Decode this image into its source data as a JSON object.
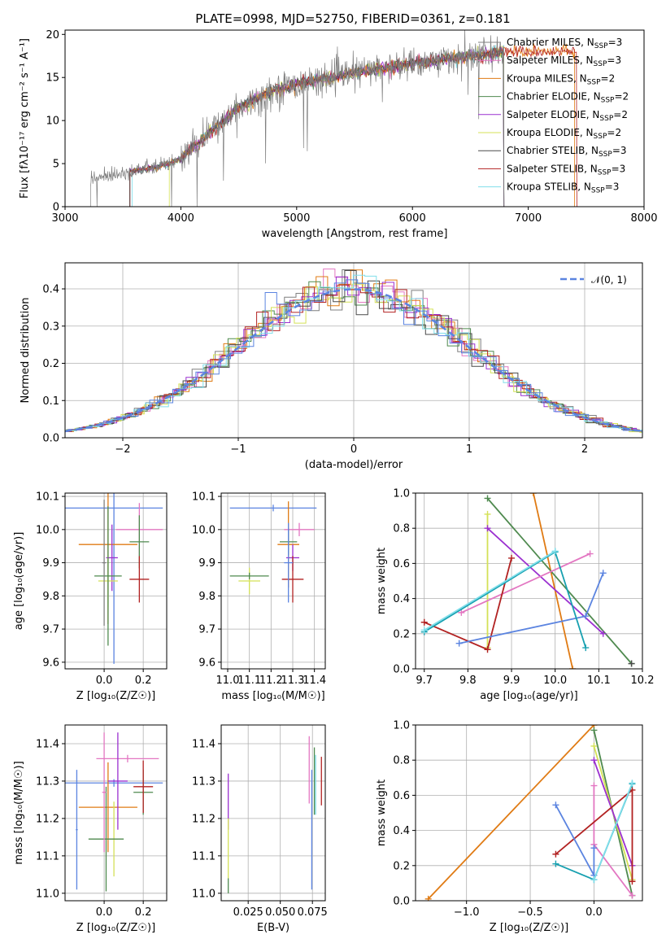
{
  "title": "PLATE=0998, MJD=52750, FIBERID=0361, z=0.181",
  "series_colors": [
    "#7f7f7f",
    "#e377c2",
    "#ff7f0e",
    "#2f7f3f",
    "#9b30d0",
    "#dbdb8d",
    "#3c3c3c",
    "#b22222",
    "#17becf"
  ],
  "models": [
    {
      "name": "Chabrier MILES, N",
      "sub": "SSP",
      "eq": "=3",
      "color": "#7f7f7f"
    },
    {
      "name": "Salpeter MILES, N",
      "sub": "SSP",
      "eq": "=3",
      "color": "#e377c2"
    },
    {
      "name": "Kroupa MILES, N",
      "sub": "SSP",
      "eq": "=2",
      "color": "#e07b14"
    },
    {
      "name": "Chabrier ELODIE, N",
      "sub": "SSP",
      "eq": "=2",
      "color": "#4f8a4f"
    },
    {
      "name": "Salpeter ELODIE, N",
      "sub": "SSP",
      "eq": "=2",
      "color": "#9b30d0"
    },
    {
      "name": "Kroupa ELODIE, N",
      "sub": "SSP",
      "eq": "=2",
      "color": "#d4e157"
    },
    {
      "name": "Chabrier STELIB, N",
      "sub": "SSP",
      "eq": "=3",
      "color": "#4a4a4a"
    },
    {
      "name": "Salpeter STELIB, N",
      "sub": "SSP",
      "eq": "=3",
      "color": "#b22222"
    },
    {
      "name": "Kroupa STELIB, N",
      "sub": "SSP",
      "eq": "=3",
      "color": "#80deea"
    }
  ],
  "chart_data": [
    {
      "id": "spectrum",
      "type": "line",
      "xlabel": "wavelength [Angstrom, rest frame]",
      "ylabel": "Flux [fλ10⁻¹⁷ erg cm⁻² s⁻¹ A⁻¹]",
      "xlim": [
        3000,
        8000
      ],
      "ylim": [
        0,
        20.5
      ],
      "xticks": [
        3000,
        4000,
        5000,
        6000,
        7000,
        8000
      ],
      "yticks": [
        0,
        5,
        10,
        15,
        20
      ],
      "continuum": {
        "x": [
          3220,
          3500,
          3800,
          4000,
          4200,
          4500,
          4800,
          5000,
          5300,
          5600,
          6000,
          6300,
          6600,
          6800
        ],
        "y": [
          3.2,
          4.0,
          4.6,
          5.5,
          8.0,
          11.5,
          13.5,
          14.2,
          15.0,
          15.8,
          16.6,
          17.2,
          17.6,
          18.0
        ]
      }
    },
    {
      "id": "residuals",
      "type": "line",
      "xlabel": "(data-model)/error",
      "ylabel": "Normed distribution",
      "xlim": [
        -2.5,
        2.5
      ],
      "ylim": [
        0,
        0.47
      ],
      "xticks": [
        -2,
        -1,
        0,
        1,
        2
      ],
      "xtick_labels": [
        "−2",
        "−1",
        "0",
        "1",
        "2"
      ],
      "yticks": [
        0.0,
        0.1,
        0.2,
        0.3,
        0.4
      ],
      "ytick_labels": [
        "0.0",
        "0.1",
        "0.2",
        "0.3",
        "0.4"
      ],
      "legend": "𝒩(0, 1)",
      "legend_position": "top-right",
      "grid": true
    },
    {
      "id": "age_vs_Z",
      "type": "scatter",
      "xlabel": "Z [log₁₀(Z/Z☉)]",
      "ylabel": "age  [log₁₀(age/yr)]",
      "xlim": [
        -0.2,
        0.32
      ],
      "ylim": [
        9.58,
        10.11
      ],
      "xticks": [
        0.0,
        0.2
      ],
      "xtick_labels": [
        "0.0",
        "0.2"
      ],
      "yticks": [
        9.6,
        9.7,
        9.8,
        9.9,
        10.0,
        10.1
      ],
      "ytick_labels": [
        "9.6",
        "9.7",
        "9.8",
        "9.9",
        "10.0",
        "10.1"
      ],
      "grid": true,
      "points": [
        {
          "x": 0.05,
          "y": 10.065,
          "xerr": 0.25,
          "yerr": 0.47,
          "color": "#5b84e0"
        },
        {
          "x": 0.18,
          "y": 10.0,
          "xerr": 0.12,
          "yerr": 0.08,
          "color": "#e377c2"
        },
        {
          "x": 0.02,
          "y": 9.955,
          "xerr": 0.15,
          "yerr": 0.24,
          "color": "#e07b14"
        },
        {
          "x": 0.18,
          "y": 9.963,
          "xerr": 0.05,
          "yerr": 0.08,
          "color": "#4f8a4f"
        },
        {
          "x": 0.04,
          "y": 9.915,
          "xerr": 0.03,
          "yerr": 0.1,
          "color": "#9b30d0"
        },
        {
          "x": 0.02,
          "y": 9.845,
          "xerr": 0.05,
          "yerr": 0.08,
          "color": "#d4e157"
        },
        {
          "x": 0.02,
          "y": 9.86,
          "xerr": 0.07,
          "yerr": 0.21,
          "color": "#4f8a4f"
        },
        {
          "x": 0.18,
          "y": 9.85,
          "xerr": 0.05,
          "yerr": 0.07,
          "color": "#b22222"
        },
        {
          "x": 0.0,
          "y": 9.9,
          "xerr": 0.01,
          "yerr": 0.19,
          "color": "#7f7f7f"
        }
      ]
    },
    {
      "id": "age_vs_mass",
      "type": "scatter",
      "xlabel": "mass [log₁₀(M/M☉)]",
      "xlim": [
        10.97,
        11.45
      ],
      "ylim": [
        9.58,
        10.11
      ],
      "xticks": [
        11.0,
        11.1,
        11.2,
        11.3,
        11.4
      ],
      "xtick_labels": [
        "11.0",
        "11.1",
        "11.2",
        "11.3",
        "11.4"
      ],
      "yticks": [
        9.6,
        9.7,
        9.8,
        9.9,
        10.0,
        10.1
      ],
      "ytick_labels": [
        "9.6",
        "9.7",
        "9.8",
        "9.9",
        "10.0",
        "10.1"
      ],
      "grid": true,
      "points": [
        {
          "x": 11.21,
          "y": 10.065,
          "xerr": 0.2,
          "yerr": 0.01,
          "color": "#5b84e0"
        },
        {
          "x": 11.33,
          "y": 10.0,
          "xerr": 0.07,
          "yerr": 0.02,
          "color": "#e377c2"
        },
        {
          "x": 11.28,
          "y": 9.955,
          "xerr": 0.05,
          "yerr": 0.13,
          "color": "#e07b14"
        },
        {
          "x": 11.28,
          "y": 9.963,
          "xerr": 0.04,
          "yerr": 0.04,
          "color": "#4f8a4f"
        },
        {
          "x": 11.3,
          "y": 9.915,
          "xerr": 0.03,
          "yerr": 0.04,
          "color": "#9b30d0"
        },
        {
          "x": 11.1,
          "y": 9.845,
          "xerr": 0.05,
          "yerr": 0.04,
          "color": "#d4e157"
        },
        {
          "x": 11.1,
          "y": 9.86,
          "xerr": 0.09,
          "yerr": 0.01,
          "color": "#4f8a4f"
        },
        {
          "x": 11.3,
          "y": 9.85,
          "xerr": 0.05,
          "yerr": 0.07,
          "color": "#b22222"
        },
        {
          "x": 11.28,
          "y": 9.9,
          "xerr": 0.02,
          "yerr": 0.12,
          "color": "#5b84e0"
        }
      ]
    },
    {
      "id": "weight_vs_age",
      "type": "line",
      "xlabel": "age  [log₁₀(age/yr)]",
      "ylabel": "mass weight",
      "xlim": [
        9.68,
        10.2
      ],
      "ylim": [
        0,
        1.0
      ],
      "xticks": [
        9.7,
        9.8,
        9.9,
        10.0,
        10.1,
        10.2
      ],
      "xtick_labels": [
        "9.7",
        "9.8",
        "9.9",
        "10.0",
        "10.1",
        "10.2"
      ],
      "yticks": [
        0.0,
        0.2,
        0.4,
        0.6,
        0.8,
        1.0
      ],
      "ytick_labels": [
        "0.0",
        "0.2",
        "0.4",
        "0.6",
        "0.8",
        "1.0"
      ],
      "grid": true,
      "series": [
        {
          "color": "#e07b14",
          "x": [
            9.95,
            10.04
          ],
          "y": [
            1.0,
            0.0
          ]
        },
        {
          "color": "#4f8a4f",
          "x": [
            9.845,
            10.175
          ],
          "y": [
            0.97,
            0.03
          ]
        },
        {
          "color": "#d4e157",
          "x": [
            9.845,
            9.845
          ],
          "y": [
            0.88,
            0.12
          ]
        },
        {
          "color": "#9b30d0",
          "x": [
            9.845,
            10.11
          ],
          "y": [
            0.8,
            0.2
          ]
        },
        {
          "color": "#e377c2",
          "x": [
            9.785,
            10.08
          ],
          "y": [
            0.32,
            0.655
          ]
        },
        {
          "color": "#b22222",
          "x": [
            9.7,
            9.845,
            9.9
          ],
          "y": [
            0.265,
            0.11,
            0.63
          ]
        },
        {
          "color": "#5b84e0",
          "x": [
            9.78,
            10.07,
            10.11
          ],
          "y": [
            0.145,
            0.3,
            0.545
          ]
        },
        {
          "color": "#17a0b0",
          "x": [
            9.7,
            10.0,
            10.07
          ],
          "y": [
            0.21,
            0.665,
            0.12
          ]
        },
        {
          "color": "#80deea",
          "x": [
            9.7,
            10.0
          ],
          "y": [
            0.22,
            0.67
          ]
        },
        {
          "color": "#4a4a4a",
          "x": [
            10.175
          ],
          "y": [
            0.03
          ]
        }
      ]
    },
    {
      "id": "mass_vs_Z",
      "type": "scatter",
      "xlabel": "Z [log₁₀(Z/Z☉)]",
      "ylabel": "mass [log₁₀(M/M☉)]",
      "xlim": [
        -0.2,
        0.32
      ],
      "ylim": [
        10.98,
        11.45
      ],
      "xticks": [
        0.0,
        0.2
      ],
      "xtick_labels": [
        "0.0",
        "0.2"
      ],
      "yticks": [
        11.0,
        11.1,
        11.2,
        11.3,
        11.4
      ],
      "ytick_labels": [
        "11.0",
        "11.1",
        "11.2",
        "11.3",
        "11.4"
      ],
      "grid": true,
      "points": [
        {
          "x": 0.05,
          "y": 11.295,
          "xerr": 0.25,
          "yerr": 0.01,
          "color": "#5b84e0"
        },
        {
          "x": 0.12,
          "y": 11.36,
          "xerr": 0.16,
          "yerr": 0.01,
          "color": "#e377c2"
        },
        {
          "x": 0.02,
          "y": 11.23,
          "xerr": 0.15,
          "yerr": 0.12,
          "color": "#e07b14"
        },
        {
          "x": 0.2,
          "y": 11.27,
          "xerr": 0.05,
          "yerr": 0.06,
          "color": "#4f8a4f"
        },
        {
          "x": 0.07,
          "y": 11.3,
          "xerr": 0.05,
          "yerr": 0.13,
          "color": "#9b30d0"
        },
        {
          "x": 0.05,
          "y": 11.145,
          "xerr": 0.02,
          "yerr": 0.1,
          "color": "#d4e157"
        },
        {
          "x": 0.01,
          "y": 11.145,
          "xerr": 0.09,
          "yerr": 0.14,
          "color": "#4f8a4f"
        },
        {
          "x": 0.2,
          "y": 11.285,
          "xerr": 0.05,
          "yerr": 0.07,
          "color": "#b22222"
        },
        {
          "x": 0.0,
          "y": 11.27,
          "xerr": 0.01,
          "yerr": 0.16,
          "color": "#e377c2"
        },
        {
          "x": -0.14,
          "y": 11.17,
          "xerr": 0.005,
          "yerr": 0.16,
          "color": "#5b84e0"
        }
      ]
    },
    {
      "id": "mass_vs_EBV",
      "type": "scatter",
      "xlabel": "E(B-V)",
      "xlim": [
        0.004,
        0.085
      ],
      "ylim": [
        10.98,
        11.45
      ],
      "xticks": [
        0.025,
        0.05,
        0.075
      ],
      "xtick_labels": [
        "0.025",
        "0.050",
        "0.075"
      ],
      "yticks": [
        11.0,
        11.1,
        11.2,
        11.3,
        11.4
      ],
      "ytick_labels": [
        "11.0",
        "11.1",
        "11.2",
        "11.3",
        "11.4"
      ],
      "grid": true,
      "points": [
        {
          "x": 0.0095,
          "y": 11.245,
          "yerr": 0.075,
          "color": "#9b30d0"
        },
        {
          "x": 0.0095,
          "y": 11.12,
          "yerr": 0.08,
          "color": "#d4e157"
        },
        {
          "x": 0.0095,
          "y": 11.02,
          "yerr": 0.02,
          "color": "#4f8a4f"
        },
        {
          "x": 0.0725,
          "y": 11.33,
          "yerr": 0.09,
          "color": "#e377c2"
        },
        {
          "x": 0.0745,
          "y": 11.17,
          "yerr": 0.16,
          "color": "#5b84e0"
        },
        {
          "x": 0.0765,
          "y": 11.3,
          "yerr": 0.09,
          "color": "#4f8a4f"
        },
        {
          "x": 0.0775,
          "y": 11.29,
          "yerr": 0.08,
          "color": "#80deea"
        },
        {
          "x": 0.082,
          "y": 11.3,
          "yerr": 0.065,
          "color": "#b22222"
        }
      ]
    },
    {
      "id": "weight_vs_Z",
      "type": "line",
      "xlabel": "Z [log₁₀(Z/Z☉)]",
      "ylabel": "mass weight",
      "xlim": [
        -1.4,
        0.38
      ],
      "ylim": [
        0,
        1.0
      ],
      "xticks": [
        -1.0,
        -0.5,
        0.0
      ],
      "xtick_labels": [
        "−1.0",
        "−0.5",
        "0.0"
      ],
      "yticks": [
        0.0,
        0.2,
        0.4,
        0.6,
        0.8,
        1.0
      ],
      "ytick_labels": [
        "0.0",
        "0.2",
        "0.4",
        "0.6",
        "0.8",
        "1.0"
      ],
      "grid": true,
      "series": [
        {
          "color": "#e07b14",
          "x": [
            -1.3,
            0.0
          ],
          "y": [
            0.01,
            1.0
          ]
        },
        {
          "color": "#4f8a4f",
          "x": [
            0.0,
            0.3
          ],
          "y": [
            0.97,
            0.03
          ]
        },
        {
          "color": "#d4e157",
          "x": [
            0.0,
            0.3
          ],
          "y": [
            0.88,
            0.12
          ]
        },
        {
          "color": "#9b30d0",
          "x": [
            0.0,
            0.3
          ],
          "y": [
            0.8,
            0.2
          ]
        },
        {
          "color": "#e377c2",
          "x": [
            0.0,
            0.0,
            0.3
          ],
          "y": [
            0.655,
            0.32,
            0.03
          ]
        },
        {
          "color": "#b22222",
          "x": [
            -0.3,
            0.3,
            0.3
          ],
          "y": [
            0.265,
            0.63,
            0.11
          ]
        },
        {
          "color": "#5b84e0",
          "x": [
            -0.3,
            0.0,
            0.0
          ],
          "y": [
            0.545,
            0.145,
            0.3
          ]
        },
        {
          "color": "#17a0b0",
          "x": [
            -0.3,
            0.0,
            0.3
          ],
          "y": [
            0.21,
            0.12,
            0.665
          ]
        },
        {
          "color": "#80deea",
          "x": [
            0.0,
            0.3
          ],
          "y": [
            0.12,
            0.67
          ]
        }
      ]
    }
  ]
}
